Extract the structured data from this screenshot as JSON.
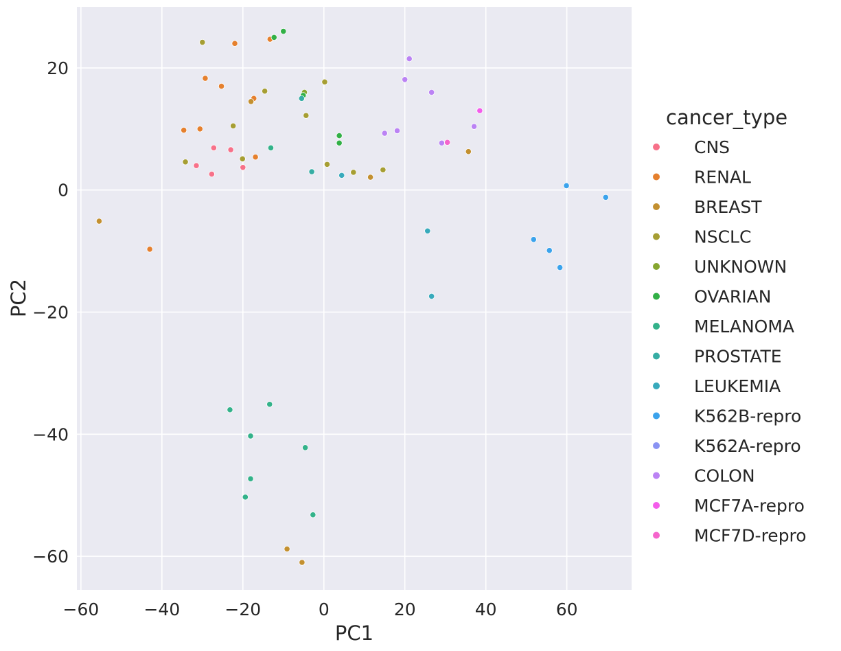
{
  "chart_data": {
    "type": "scatter",
    "title": "",
    "xlabel": "PC1",
    "ylabel": "PC2",
    "xlim": [
      -61,
      76
    ],
    "ylim": [
      -65.5,
      30
    ],
    "xticks": [
      -60,
      -40,
      -20,
      0,
      20,
      40,
      60
    ],
    "yticks": [
      -60,
      -40,
      -20,
      0,
      20
    ],
    "grid": true,
    "legend": {
      "title": "cancer_type",
      "placement": "right"
    },
    "series": [
      {
        "name": "CNS",
        "color": "#f77189",
        "points": [
          [
            -27.2,
            6.9
          ],
          [
            -23,
            6.6
          ],
          [
            -31.5,
            4.0
          ],
          [
            -27.7,
            2.6
          ],
          [
            -20,
            3.7
          ]
        ]
      },
      {
        "name": "RENAL",
        "color": "#e5802e",
        "points": [
          [
            -22,
            24.0
          ],
          [
            -13.3,
            24.7
          ],
          [
            -29.3,
            18.3
          ],
          [
            -25.3,
            17.0
          ],
          [
            -17.3,
            15.0
          ],
          [
            -34.6,
            9.8
          ],
          [
            -30.6,
            10.0
          ],
          [
            -16.9,
            5.4
          ],
          [
            -43,
            -9.7
          ]
        ]
      },
      {
        "name": "BREAST",
        "color": "#c39030",
        "points": [
          [
            -18,
            14.5
          ],
          [
            35.7,
            6.3
          ],
          [
            11.5,
            2.1
          ],
          [
            -55.5,
            -5.1
          ],
          [
            -9.1,
            -58.8
          ],
          [
            -5.4,
            -61.0
          ]
        ]
      },
      {
        "name": "NSCLC",
        "color": "#a69e33",
        "points": [
          [
            -30,
            24.2
          ],
          [
            -14.6,
            16.2
          ],
          [
            0.2,
            17.7
          ],
          [
            -4.4,
            12.2
          ],
          [
            -22.4,
            10.5
          ],
          [
            -34.2,
            4.6
          ],
          [
            -20.1,
            5.1
          ],
          [
            0.8,
            4.2
          ],
          [
            7.3,
            2.9
          ],
          [
            14.6,
            3.3
          ]
        ]
      },
      {
        "name": "UNKNOWN",
        "color": "#86a62f",
        "points": [
          [
            -4.8,
            16.0
          ]
        ]
      },
      {
        "name": "OVARIAN",
        "color": "#32b046",
        "points": [
          [
            -10,
            26.0
          ],
          [
            -12.3,
            25.0
          ],
          [
            -5.1,
            15.5
          ],
          [
            3.8,
            8.9
          ],
          [
            3.8,
            7.7
          ]
        ]
      },
      {
        "name": "MELANOMA",
        "color": "#33b28a",
        "points": [
          [
            -13.1,
            6.9
          ],
          [
            -23.2,
            -36.0
          ],
          [
            -13.4,
            -35.1
          ],
          [
            -18.1,
            -40.3
          ],
          [
            -4.6,
            -42.2
          ],
          [
            -18.1,
            -47.3
          ],
          [
            -19.4,
            -50.3
          ],
          [
            -2.7,
            -53.2
          ]
        ]
      },
      {
        "name": "PROSTATE",
        "color": "#36ada4",
        "points": [
          [
            -5.5,
            15.0
          ],
          [
            -3.0,
            3.0
          ]
        ]
      },
      {
        "name": "LEUKEMIA",
        "color": "#38aabc",
        "points": [
          [
            4.4,
            2.4
          ],
          [
            25.6,
            -6.7
          ],
          [
            26.6,
            -17.4
          ]
        ]
      },
      {
        "name": "K562B-repro",
        "color": "#3ba3ec",
        "points": [
          [
            59.9,
            0.7
          ],
          [
            69.6,
            -1.2
          ],
          [
            51.8,
            -8.1
          ],
          [
            55.7,
            -9.9
          ],
          [
            58.3,
            -12.7
          ]
        ]
      },
      {
        "name": "K562A-repro",
        "color": "#8a93f3",
        "points": []
      },
      {
        "name": "COLON",
        "color": "#bb83f4",
        "points": [
          [
            21.1,
            21.5
          ],
          [
            20.0,
            18.1
          ],
          [
            26.6,
            16.0
          ],
          [
            37.1,
            10.4
          ],
          [
            18.1,
            9.7
          ],
          [
            15.0,
            9.3
          ],
          [
            29.1,
            7.7
          ]
        ]
      },
      {
        "name": "MCF7A-repro",
        "color": "#f45deb",
        "points": [
          [
            38.5,
            13.0
          ]
        ]
      },
      {
        "name": "MCF7D-repro",
        "color": "#f565cc",
        "points": [
          [
            30.5,
            7.8
          ]
        ]
      }
    ]
  }
}
